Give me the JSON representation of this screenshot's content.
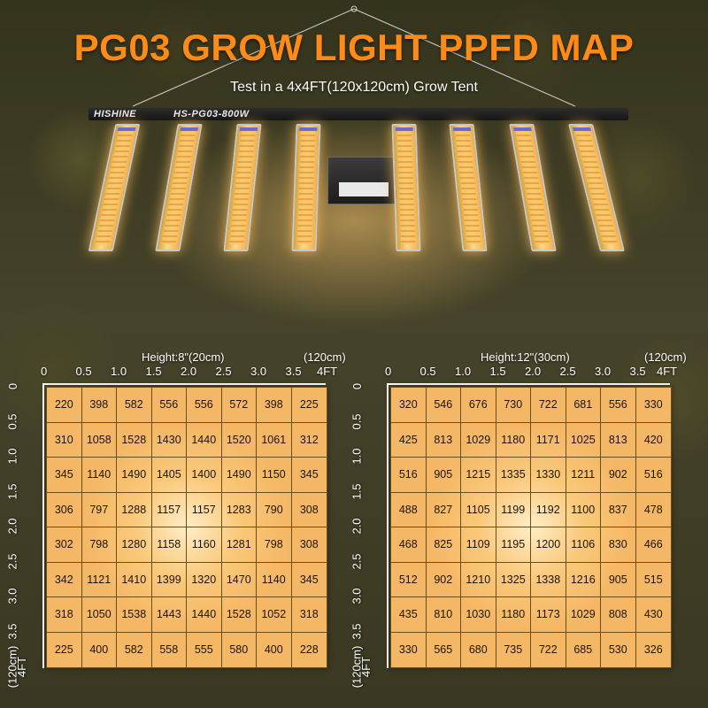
{
  "title": "PG03 GROW LIGHT PPFD MAP",
  "subtitle": "Test in a 4x4FT(120x120cm) Grow Tent",
  "fixture": {
    "brand": "HISHINE",
    "model": "HS-PG03-800W"
  },
  "axis_ticks": [
    "0",
    "0.5",
    "1.0",
    "1.5",
    "2.0",
    "2.5",
    "3.0",
    "3.5"
  ],
  "axis_end_label": "4FT",
  "axis_cm_label": "(120cm)",
  "maps": [
    {
      "height_label": "Height:8\"(20cm)",
      "rows": [
        [
          "220",
          "398",
          "582",
          "556",
          "556",
          "572",
          "398",
          "225"
        ],
        [
          "310",
          "1058",
          "1528",
          "1430",
          "1440",
          "1520",
          "1061",
          "312"
        ],
        [
          "345",
          "1140",
          "1490",
          "1405",
          "1400",
          "1490",
          "1150",
          "345"
        ],
        [
          "306",
          "797",
          "1288",
          "1157",
          "1157",
          "1283",
          "790",
          "308"
        ],
        [
          "302",
          "798",
          "1280",
          "1158",
          "1160",
          "1281",
          "798",
          "308"
        ],
        [
          "342",
          "1121",
          "1410",
          "1399",
          "1320",
          "1470",
          "1140",
          "345"
        ],
        [
          "318",
          "1050",
          "1538",
          "1443",
          "1440",
          "1528",
          "1052",
          "318"
        ],
        [
          "225",
          "400",
          "582",
          "558",
          "555",
          "580",
          "400",
          "228"
        ]
      ]
    },
    {
      "height_label": "Height:12\"(30cm)",
      "rows": [
        [
          "320",
          "546",
          "676",
          "730",
          "722",
          "681",
          "556",
          "330"
        ],
        [
          "425",
          "813",
          "1029",
          "1180",
          "1171",
          "1025",
          "813",
          "420"
        ],
        [
          "516",
          "905",
          "1215",
          "1335",
          "1330",
          "1211",
          "902",
          "516"
        ],
        [
          "488",
          "827",
          "1105",
          "1199",
          "1192",
          "1100",
          "837",
          "478"
        ],
        [
          "468",
          "825",
          "1109",
          "1195",
          "1200",
          "1106",
          "830",
          "466"
        ],
        [
          "512",
          "902",
          "1210",
          "1325",
          "1338",
          "1216",
          "905",
          "515"
        ],
        [
          "435",
          "810",
          "1030",
          "1180",
          "1173",
          "1029",
          "808",
          "430"
        ],
        [
          "330",
          "565",
          "680",
          "735",
          "722",
          "685",
          "530",
          "326"
        ]
      ]
    }
  ],
  "colors": {
    "title": "#ff8a16",
    "cell": "#f4b765",
    "cell_border": "#6b4d16"
  }
}
